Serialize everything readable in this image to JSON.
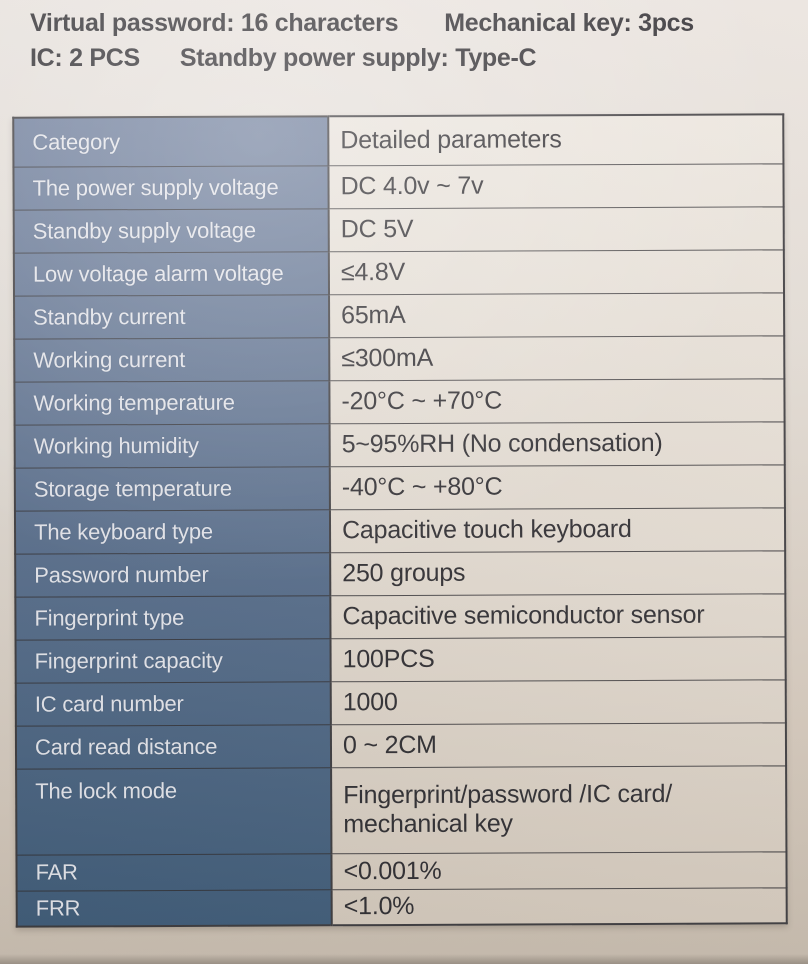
{
  "header": {
    "line1_left": "Virtual password: 16 characters",
    "line1_right": "Mechanical key: 3pcs",
    "line2_left": "IC: 2 PCS",
    "line2_right": "Standby power supply: Type-C"
  },
  "table": {
    "column_headers": [
      "Category",
      "Detailed parameters"
    ],
    "rows": [
      {
        "category": "Category",
        "value": "Detailed parameters"
      },
      {
        "category": "The power supply voltage",
        "value": "DC 4.0v ~ 7v"
      },
      {
        "category": "Standby supply voltage",
        "value": "DC 5V"
      },
      {
        "category": "Low voltage alarm voltage",
        "value": "≤4.8V"
      },
      {
        "category": "Standby current",
        "value": "65mA"
      },
      {
        "category": "Working current",
        "value": "≤300mA"
      },
      {
        "category": "Working temperature",
        "value": "-20°C ~ +70°C"
      },
      {
        "category": "Working humidity",
        "value": "5~95%RH (No condensation)"
      },
      {
        "category": "Storage temperature",
        "value": "-40°C ~ +80°C"
      },
      {
        "category": "The keyboard type",
        "value": "Capacitive touch keyboard"
      },
      {
        "category": "Password number",
        "value": "250 groups"
      },
      {
        "category": "Fingerprint type",
        "value": "Capacitive semiconductor sensor"
      },
      {
        "category": "Fingerprint capacity",
        "value": "100PCS"
      },
      {
        "category": "IC card number",
        "value": "1000"
      },
      {
        "category": "Card read distance",
        "value": "0 ~ 2CM"
      },
      {
        "category": "The lock mode",
        "value": "Fingerprint/password /IC card/\nmechanical key"
      },
      {
        "category": "FAR",
        "value": "<0.001%"
      },
      {
        "category": "FRR",
        "value": "<1.0%"
      }
    ]
  },
  "colors": {
    "page_bg_top": "#ebe7e3",
    "page_bg_bottom": "#cbc0b2",
    "category_col_top": "#6e80a0",
    "category_col_bottom": "#3e5d7c",
    "value_col_top": "#ede9e2",
    "value_col_bottom": "#d9cfc2",
    "table_border": "#3a3a3e",
    "category_text": "#e9ecf3",
    "value_text": "#2b2b30",
    "header_text": "#28282d"
  }
}
